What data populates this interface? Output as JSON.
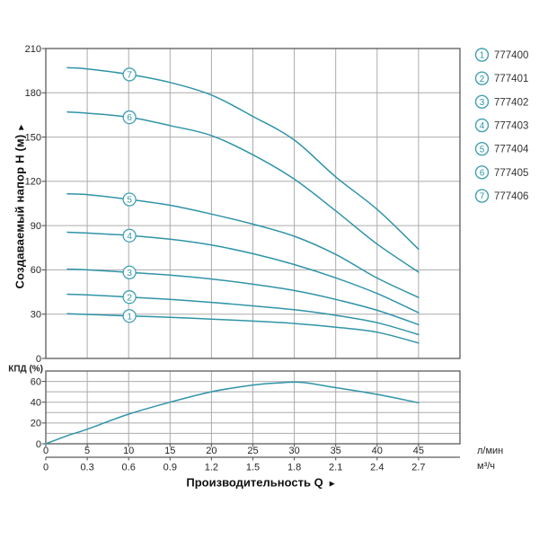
{
  "colors": {
    "curve": "#2f94a8",
    "marker_stroke": "#41a0b2",
    "marker_fill": "#ffffff",
    "grid": "#ababab",
    "frame": "#5a5a5a",
    "tick_text": "#262626",
    "legend_text": "#333333",
    "background": "#ffffff"
  },
  "axes": {
    "y_title": "Создаваемый напор H (м)",
    "y_title_arrow": "►",
    "x_title": "Производительность Q",
    "x_title_arrow": "►",
    "eff_title": "КПД (%)",
    "unit_primary": "л/мин",
    "unit_secondary": "м³/ч"
  },
  "chart_data": [
    {
      "type": "line",
      "title": "",
      "ylabel": "Создаваемый напор H (м)",
      "xlabel": "Производительность Q",
      "x_unit_primary": "л/мин",
      "x_unit_secondary": "м³/ч",
      "xlim": [
        0,
        50
      ],
      "ylim": [
        0,
        210
      ],
      "x_ticks": [
        0,
        5,
        10,
        15,
        20,
        25,
        30,
        35,
        40,
        45
      ],
      "x_ticks_secondary": [
        "0",
        "0.3",
        "0.6",
        "0.9",
        "1.2",
        "1.5",
        "1.8",
        "2.1",
        "2.4",
        "2.7"
      ],
      "y_ticks": [
        0,
        30,
        60,
        90,
        120,
        150,
        180,
        210
      ],
      "grid": "on",
      "legend_position": "right-outside",
      "marker_q": 10.1,
      "series": [
        {
          "marker": "1",
          "name": "777400",
          "points": [
            [
              2.6,
              30.3
            ],
            [
              5,
              29.8
            ],
            [
              10,
              28.8
            ],
            [
              15,
              27.9
            ],
            [
              20,
              26.6
            ],
            [
              25,
              25.3
            ],
            [
              30,
              23.7
            ],
            [
              35,
              21.2
            ],
            [
              40,
              17.8
            ],
            [
              45,
              10.5
            ]
          ]
        },
        {
          "marker": "2",
          "name": "777401",
          "points": [
            [
              2.6,
              43.5
            ],
            [
              5,
              43.1
            ],
            [
              10,
              41.6
            ],
            [
              15,
              40.0
            ],
            [
              20,
              38.0
            ],
            [
              25,
              35.6
            ],
            [
              30,
              33.0
            ],
            [
              35,
              29.2
            ],
            [
              40,
              24.2
            ],
            [
              45,
              16.2
            ]
          ]
        },
        {
          "marker": "3",
          "name": "777402",
          "points": [
            [
              2.6,
              60.5
            ],
            [
              5,
              60.0
            ],
            [
              10,
              58.3
            ],
            [
              15,
              56.4
            ],
            [
              20,
              53.8
            ],
            [
              25,
              50.3
            ],
            [
              30,
              46.0
            ],
            [
              35,
              40.0
            ],
            [
              40,
              32.6
            ],
            [
              45,
              22.9
            ]
          ]
        },
        {
          "marker": "4",
          "name": "777403",
          "points": [
            [
              2.6,
              85.5
            ],
            [
              5,
              85.0
            ],
            [
              10,
              83.3
            ],
            [
              15,
              80.8
            ],
            [
              20,
              76.8
            ],
            [
              25,
              71.0
            ],
            [
              30,
              63.6
            ],
            [
              35,
              54.6
            ],
            [
              40,
              44.0
            ],
            [
              45,
              31.0
            ]
          ]
        },
        {
          "marker": "5",
          "name": "777404",
          "points": [
            [
              2.6,
              111.5
            ],
            [
              5,
              111.0
            ],
            [
              10,
              107.8
            ],
            [
              15,
              103.8
            ],
            [
              20,
              97.8
            ],
            [
              25,
              91.0
            ],
            [
              30,
              82.8
            ],
            [
              35,
              70.5
            ],
            [
              40,
              54.5
            ],
            [
              45,
              41.3
            ]
          ]
        },
        {
          "marker": "6",
          "name": "777405",
          "points": [
            [
              2.6,
              167.0
            ],
            [
              5,
              166.2
            ],
            [
              10,
              163.5
            ],
            [
              15,
              157.8
            ],
            [
              20,
              151.0
            ],
            [
              25,
              138.0
            ],
            [
              30,
              121.5
            ],
            [
              35,
              100.0
            ],
            [
              40,
              77.5
            ],
            [
              45,
              58.5
            ]
          ]
        },
        {
          "marker": "7",
          "name": "777406",
          "points": [
            [
              2.6,
              197.0
            ],
            [
              5,
              196.2
            ],
            [
              10,
              192.5
            ],
            [
              15,
              187.0
            ],
            [
              20,
              178.5
            ],
            [
              25,
              164.0
            ],
            [
              30,
              148.0
            ],
            [
              35,
              123.0
            ],
            [
              40,
              101.0
            ],
            [
              45,
              74.0
            ]
          ]
        }
      ]
    },
    {
      "type": "line",
      "title": "",
      "ylabel": "КПД (%)",
      "xlabel": "Производительность Q",
      "xlim": [
        0,
        50
      ],
      "ylim": [
        0,
        70
      ],
      "y_ticks": [
        0,
        20,
        40,
        60
      ],
      "grid_step_y": 10,
      "grid": "on",
      "series": [
        {
          "name": "КПД",
          "points": [
            [
              0,
              0
            ],
            [
              2.5,
              7.5
            ],
            [
              5,
              14
            ],
            [
              10,
              28.5
            ],
            [
              15,
              40
            ],
            [
              20,
              50
            ],
            [
              25,
              56.5
            ],
            [
              28,
              58.5
            ],
            [
              31,
              59
            ],
            [
              35,
              54
            ],
            [
              40,
              47.5
            ],
            [
              45,
              39.5
            ]
          ]
        }
      ]
    }
  ]
}
